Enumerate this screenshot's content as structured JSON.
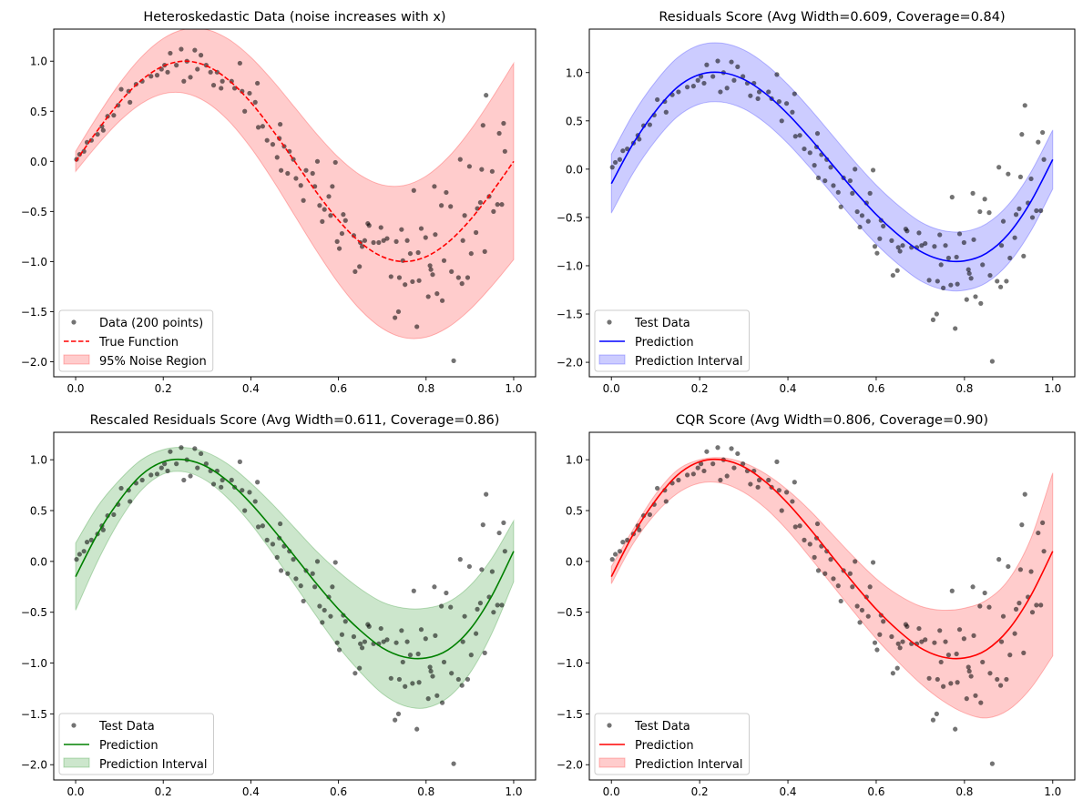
{
  "chart_data": [
    {
      "type": "scatter",
      "id": "heteroskedastic",
      "title": "Heteroskedastic Data (noise increases with x)",
      "xlabel": "",
      "ylabel": "",
      "xlim": [
        -0.05,
        1.05
      ],
      "ylim": [
        -2.15,
        1.32
      ],
      "xticks": [
        0.0,
        0.2,
        0.4,
        0.6,
        0.8,
        1.0
      ],
      "xtick_labels": [
        "0.0",
        "0.2",
        "0.4",
        "0.6",
        "0.8",
        "1.0"
      ],
      "yticks": [
        1.0,
        0.5,
        0.0,
        -0.5,
        -1.0,
        -1.5,
        -2.0
      ],
      "ytick_labels": [
        "1.0",
        "0.5",
        "0.0",
        "−0.5",
        "−1.0",
        "−1.5",
        "−2.0"
      ],
      "grid": false,
      "legend_position": "lower-left",
      "colors": {
        "line": "#ff0000",
        "band": "#ff0000",
        "points": "#000000"
      },
      "line_style": "dashed",
      "legend": [
        "Data (200 points)",
        "True Function",
        "95% Noise Region"
      ],
      "curve_name": "true-function",
      "band_name": "noise-region"
    },
    {
      "type": "scatter",
      "id": "residuals",
      "title": "Residuals Score (Avg Width=0.609, Coverage=0.84)",
      "xlabel": "",
      "ylabel": "",
      "xlim": [
        -0.05,
        1.05
      ],
      "ylim": [
        -2.15,
        1.45
      ],
      "xticks": [
        0.0,
        0.2,
        0.4,
        0.6,
        0.8,
        1.0
      ],
      "xtick_labels": [
        "0.0",
        "0.2",
        "0.4",
        "0.6",
        "0.8",
        "1.0"
      ],
      "yticks": [
        1.0,
        0.5,
        0.0,
        -0.5,
        -1.0,
        -1.5,
        -2.0
      ],
      "ytick_labels": [
        "1.0",
        "0.5",
        "0.0",
        "−0.5",
        "−1.0",
        "−1.5",
        "−2.0"
      ],
      "grid": false,
      "legend_position": "lower-left",
      "colors": {
        "line": "#0000ff",
        "band": "#0000ff",
        "points": "#000000"
      },
      "line_style": "solid",
      "legend": [
        "Test Data",
        "Prediction",
        "Prediction Interval"
      ],
      "avg_width": 0.609,
      "coverage": 0.84,
      "curve_name": "prediction",
      "band_name": "prediction-interval"
    },
    {
      "type": "scatter",
      "id": "rescaled-residuals",
      "title": "Rescaled Residuals Score (Avg Width=0.611, Coverage=0.86)",
      "xlabel": "",
      "ylabel": "",
      "xlim": [
        -0.05,
        1.05
      ],
      "ylim": [
        -2.15,
        1.27
      ],
      "xticks": [
        0.0,
        0.2,
        0.4,
        0.6,
        0.8,
        1.0
      ],
      "xtick_labels": [
        "0.0",
        "0.2",
        "0.4",
        "0.6",
        "0.8",
        "1.0"
      ],
      "yticks": [
        1.0,
        0.5,
        0.0,
        -0.5,
        -1.0,
        -1.5,
        -2.0
      ],
      "ytick_labels": [
        "1.0",
        "0.5",
        "0.0",
        "−0.5",
        "−1.0",
        "−1.5",
        "−2.0"
      ],
      "grid": false,
      "legend_position": "lower-left",
      "colors": {
        "line": "#008000",
        "band": "#008000",
        "points": "#000000"
      },
      "line_style": "solid",
      "legend": [
        "Test Data",
        "Prediction",
        "Prediction Interval"
      ],
      "avg_width": 0.611,
      "coverage": 0.86,
      "curve_name": "prediction",
      "band_name": "prediction-interval"
    },
    {
      "type": "scatter",
      "id": "cqr",
      "title": "CQR Score (Avg Width=0.806, Coverage=0.90)",
      "xlabel": "",
      "ylabel": "",
      "xlim": [
        -0.05,
        1.05
      ],
      "ylim": [
        -2.15,
        1.27
      ],
      "xticks": [
        0.0,
        0.2,
        0.4,
        0.6,
        0.8,
        1.0
      ],
      "xtick_labels": [
        "0.0",
        "0.2",
        "0.4",
        "0.6",
        "0.8",
        "1.0"
      ],
      "yticks": [
        1.0,
        0.5,
        0.0,
        -0.5,
        -1.0,
        -1.5,
        -2.0
      ],
      "ytick_labels": [
        "1.0",
        "0.5",
        "0.0",
        "−0.5",
        "−1.0",
        "−1.5",
        "−2.0"
      ],
      "grid": false,
      "legend_position": "lower-left",
      "colors": {
        "line": "#ff0000",
        "band": "#ff0000",
        "points": "#000000"
      },
      "line_style": "solid",
      "legend": [
        "Test Data",
        "Prediction",
        "Prediction Interval"
      ],
      "avg_width": 0.806,
      "coverage": 0.9,
      "curve_name": "prediction",
      "band_name": "prediction-interval"
    }
  ],
  "curves": {
    "x": [
      0.0,
      0.05,
      0.1,
      0.15,
      0.2,
      0.25,
      0.3,
      0.35,
      0.4,
      0.45,
      0.5,
      0.55,
      0.6,
      0.65,
      0.7,
      0.75,
      0.8,
      0.85,
      0.9,
      0.95,
      1.0
    ],
    "true_function": [
      0.0,
      0.309,
      0.588,
      0.809,
      0.951,
      1.0,
      0.951,
      0.809,
      0.588,
      0.309,
      0.0,
      -0.309,
      -0.588,
      -0.809,
      -0.951,
      -1.0,
      -0.951,
      -0.809,
      -0.588,
      -0.309,
      0.0
    ],
    "noise_halfwidth": [
      0.1,
      0.144,
      0.188,
      0.232,
      0.276,
      0.32,
      0.364,
      0.408,
      0.452,
      0.496,
      0.54,
      0.584,
      0.628,
      0.672,
      0.716,
      0.76,
      0.804,
      0.848,
      0.892,
      0.936,
      0.98
    ],
    "prediction": [
      -0.15,
      0.27,
      0.6,
      0.85,
      0.98,
      1.0,
      0.93,
      0.78,
      0.57,
      0.32,
      0.05,
      -0.22,
      -0.47,
      -0.68,
      -0.85,
      -0.94,
      -0.95,
      -0.87,
      -0.67,
      -0.34,
      0.1
    ],
    "residuals_halfwidth": 0.305,
    "rescaled_halfwidth": [
      0.33,
      0.27,
      0.2,
      0.15,
      0.12,
      0.12,
      0.14,
      0.17,
      0.2,
      0.24,
      0.28,
      0.32,
      0.37,
      0.41,
      0.45,
      0.48,
      0.49,
      0.47,
      0.43,
      0.37,
      0.3
    ],
    "cqr_lower": [
      -0.22,
      0.18,
      0.47,
      0.67,
      0.77,
      0.77,
      0.68,
      0.52,
      0.3,
      0.04,
      -0.23,
      -0.5,
      -0.76,
      -0.99,
      -1.2,
      -1.37,
      -1.49,
      -1.54,
      -1.46,
      -1.25,
      -0.93
    ],
    "cqr_upper": [
      -0.05,
      0.32,
      0.66,
      0.9,
      1.0,
      1.02,
      0.97,
      0.86,
      0.7,
      0.5,
      0.27,
      0.04,
      -0.17,
      -0.33,
      -0.44,
      -0.48,
      -0.46,
      -0.38,
      -0.18,
      0.22,
      0.87
    ]
  },
  "points": {
    "x": [
      0.002,
      0.009,
      0.019,
      0.026,
      0.036,
      0.05,
      0.06,
      0.063,
      0.073,
      0.087,
      0.097,
      0.104,
      0.121,
      0.124,
      0.138,
      0.152,
      0.172,
      0.186,
      0.196,
      0.203,
      0.21,
      0.216,
      0.23,
      0.241,
      0.247,
      0.254,
      0.262,
      0.272,
      0.278,
      0.286,
      0.298,
      0.308,
      0.315,
      0.323,
      0.332,
      0.335,
      0.356,
      0.363,
      0.375,
      0.38,
      0.386,
      0.397,
      0.41,
      0.415,
      0.417,
      0.427,
      0.437,
      0.45,
      0.46,
      0.465,
      0.467,
      0.469,
      0.476,
      0.484,
      0.488,
      0.497,
      0.503,
      0.514,
      0.52,
      0.526,
      0.541,
      0.546,
      0.552,
      0.557,
      0.563,
      0.568,
      0.578,
      0.582,
      0.586,
      0.593,
      0.597,
      0.602,
      0.608,
      0.611,
      0.616,
      0.635,
      0.638,
      0.648,
      0.65,
      0.654,
      0.66,
      0.667,
      0.67,
      0.68,
      0.692,
      0.697,
      0.703,
      0.711,
      0.72,
      0.729,
      0.732,
      0.737,
      0.739,
      0.744,
      0.747,
      0.752,
      0.757,
      0.764,
      0.769,
      0.772,
      0.779,
      0.782,
      0.784,
      0.789,
      0.799,
      0.805,
      0.809,
      0.811,
      0.815,
      0.819,
      0.821,
      0.825,
      0.835,
      0.837,
      0.841,
      0.846,
      0.856,
      0.858,
      0.863,
      0.874,
      0.878,
      0.882,
      0.884,
      0.888,
      0.895,
      0.899,
      0.903,
      0.914,
      0.917,
      0.924,
      0.927,
      0.93,
      0.934,
      0.937,
      0.944,
      0.951,
      0.954,
      0.963,
      0.967,
      0.973,
      0.977,
      0.98
    ],
    "y": [
      0.02,
      0.07,
      0.1,
      0.19,
      0.21,
      0.27,
      0.35,
      0.31,
      0.45,
      0.46,
      0.56,
      0.72,
      0.7,
      0.59,
      0.77,
      0.8,
      0.85,
      0.86,
      0.92,
      0.96,
      0.89,
      1.08,
      0.96,
      1.12,
      0.8,
      1.0,
      0.84,
      1.11,
      0.92,
      1.06,
      0.96,
      0.89,
      0.76,
      0.89,
      0.73,
      0.8,
      0.8,
      0.73,
      0.98,
      0.7,
      0.5,
      0.68,
      0.59,
      0.78,
      0.34,
      0.35,
      0.21,
      0.17,
      0.04,
      0.23,
      0.37,
      -0.09,
      0.15,
      -0.12,
      0.1,
      0.02,
      -0.17,
      -0.24,
      -0.39,
      -0.09,
      -0.12,
      -0.25,
      0.0,
      -0.44,
      -0.6,
      -0.48,
      -0.35,
      -0.54,
      -0.25,
      -0.01,
      -0.8,
      -0.87,
      -0.72,
      -0.53,
      -0.59,
      -0.74,
      -1.1,
      -1.05,
      -0.81,
      -0.85,
      -0.79,
      -0.62,
      -0.64,
      -0.81,
      -0.81,
      -0.66,
      -0.79,
      -0.77,
      -1.15,
      -1.56,
      -0.8,
      -1.5,
      -1.16,
      -0.68,
      -0.99,
      -1.23,
      -0.79,
      -0.92,
      -1.2,
      -0.29,
      -1.65,
      -0.91,
      -1.19,
      -0.67,
      -0.76,
      -1.35,
      -1.04,
      -1.08,
      -1.13,
      -0.25,
      -0.73,
      -1.32,
      -0.44,
      -1.39,
      -0.99,
      -0.31,
      -0.45,
      -1.1,
      -1.99,
      -1.16,
      0.02,
      -1.22,
      -0.79,
      -0.54,
      -1.16,
      -0.05,
      -0.92,
      -0.71,
      -0.47,
      -0.41,
      -0.08,
      0.36,
      -0.9,
      0.66,
      -0.35,
      -0.1,
      -0.5,
      -0.43,
      0.28,
      -0.43,
      0.38,
      0.1
    ]
  }
}
